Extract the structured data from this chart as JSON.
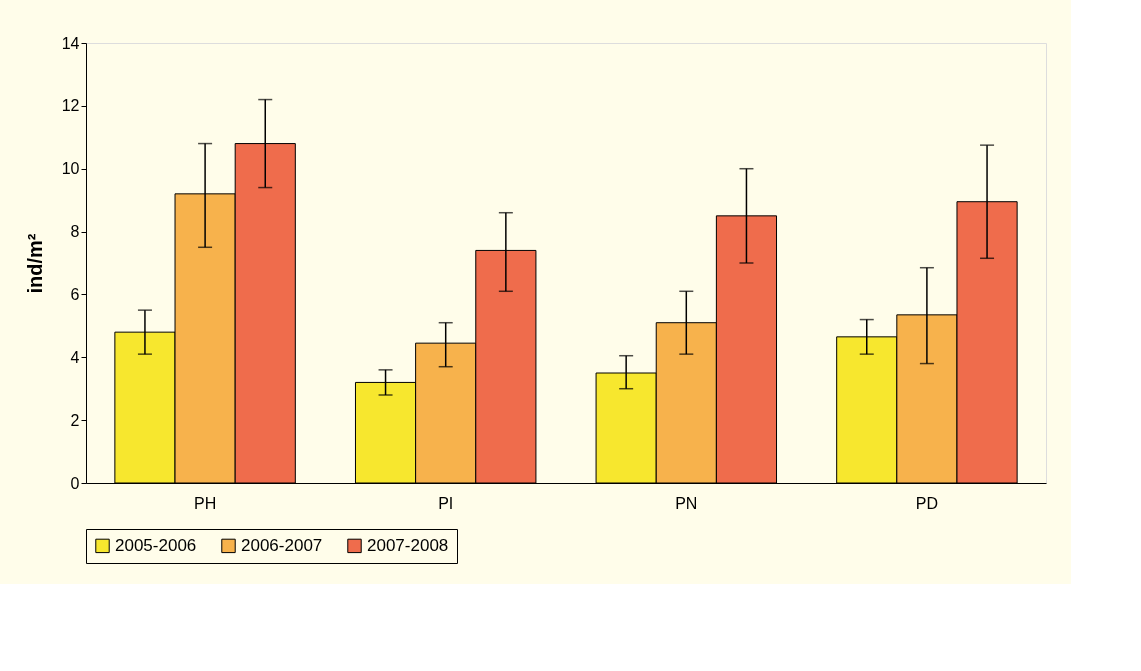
{
  "chart_data": {
    "type": "bar",
    "ylabel": "ind/m²",
    "categories": [
      "PH",
      "PI",
      "PN",
      "PD"
    ],
    "ylim": [
      0,
      14
    ],
    "yticks": [
      0,
      2,
      4,
      6,
      8,
      10,
      12,
      14
    ],
    "grid": false,
    "legend": "bottom",
    "series": [
      {
        "name": "2005-2006",
        "color": "#f7e72e",
        "values": [
          4.8,
          3.2,
          3.5,
          4.65
        ],
        "errors": [
          [
            4.1,
            5.5
          ],
          [
            2.8,
            3.6
          ],
          [
            3.0,
            4.05
          ],
          [
            4.1,
            5.2
          ]
        ]
      },
      {
        "name": "2006-2007",
        "color": "#f7b24c",
        "values": [
          9.2,
          4.45,
          5.1,
          5.35
        ],
        "errors": [
          [
            7.5,
            10.8
          ],
          [
            3.7,
            5.1
          ],
          [
            4.1,
            6.1
          ],
          [
            3.8,
            6.85
          ]
        ]
      },
      {
        "name": "2007-2008",
        "color": "#ef6c4c",
        "values": [
          10.8,
          7.4,
          8.5,
          8.95
        ],
        "errors": [
          [
            9.4,
            12.2
          ],
          [
            6.1,
            8.6
          ],
          [
            7.0,
            10.0
          ],
          [
            7.15,
            10.75
          ]
        ]
      }
    ]
  }
}
